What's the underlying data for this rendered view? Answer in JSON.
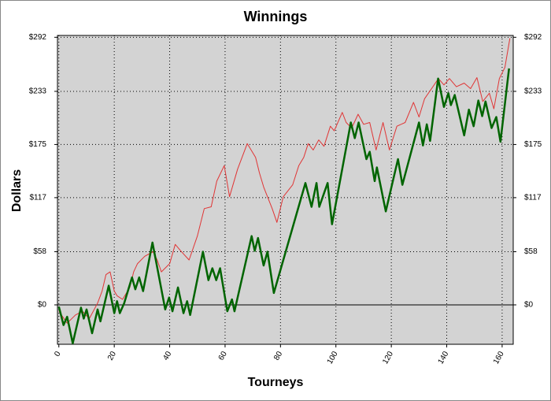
{
  "chart_data": {
    "type": "line",
    "title": "Winnings",
    "x_label": "Tourneys",
    "y_label": "Dollars",
    "xlim": [
      -0.5,
      164
    ],
    "ylim": [
      -43,
      294
    ],
    "xticks": [
      0,
      20,
      40,
      60,
      80,
      100,
      120,
      140,
      160
    ],
    "yticks": [
      {
        "value": 0,
        "label": "$0"
      },
      {
        "value": 58,
        "label": "$58"
      },
      {
        "value": 117,
        "label": "$117"
      },
      {
        "value": 175,
        "label": "$175"
      },
      {
        "value": 233,
        "label": "$233"
      },
      {
        "value": 292,
        "label": "$292"
      }
    ],
    "grid": true,
    "background": "#d3d3d3",
    "series": [
      {
        "color": "#e03535",
        "width": 1,
        "x": [
          0,
          3,
          6,
          8.5,
          11,
          14,
          15.6,
          17,
          18.5,
          20,
          21,
          23,
          25.6,
          27,
          28.4,
          31,
          34,
          35.5,
          37,
          40,
          42,
          44,
          47,
          50,
          52.5,
          55,
          57,
          59.7,
          61.6,
          64.5,
          68,
          71,
          72.4,
          74,
          77,
          78.7,
          81,
          84.4,
          86.6,
          88.4,
          90,
          91.8,
          93.8,
          95.7,
          98,
          99.4,
          102.3,
          103.7,
          105.7,
          108,
          110,
          112.2,
          114.5,
          117,
          119.3,
          122,
          125,
          128,
          130,
          132,
          135,
          137,
          139,
          141,
          143.5,
          146.3,
          148.6,
          150.9,
          153,
          155.4,
          157,
          159,
          161,
          162.8
        ],
        "values": [
          -7,
          -20,
          -11,
          -7,
          -15,
          2,
          15,
          33,
          36,
          15,
          10,
          6,
          19,
          36,
          45,
          53,
          58,
          49,
          36,
          45,
          66,
          59,
          49,
          75,
          105,
          107,
          135,
          152,
          118,
          148,
          176,
          161,
          144,
          128,
          105,
          90,
          118,
          131,
          152,
          161,
          176,
          169,
          180,
          173,
          195,
          190,
          210,
          199,
          193,
          208,
          197,
          199,
          169,
          199,
          169,
          195,
          199,
          221,
          205,
          225,
          238,
          247,
          240,
          247,
          238,
          242,
          236,
          248,
          222,
          231,
          214,
          247,
          259,
          291
        ]
      },
      {
        "color": "#006400",
        "width": 2.5,
        "x": [
          0,
          1.7,
          3,
          5,
          8,
          9,
          10,
          12,
          14,
          15,
          18,
          20,
          21,
          22,
          23.6,
          26.4,
          27.6,
          29,
          30.4,
          33.8,
          38.4,
          39.8,
          41,
          43,
          45,
          46.3,
          47.4,
          52,
          54,
          55.4,
          56.8,
          58.2,
          60.8,
          62.5,
          63.4,
          69.6,
          70.7,
          71.9,
          73.9,
          75.3,
          77.6,
          89,
          91.2,
          93,
          94,
          97,
          98.6,
          105.4,
          106.8,
          108.2,
          111,
          112.2,
          114,
          114.8,
          118,
          122.4,
          124,
          130,
          131.4,
          132.8,
          134,
          136.9,
          139,
          140.6,
          141.5,
          142.9,
          146.3,
          148,
          149.7,
          151.4,
          152.8,
          154,
          156.2,
          157.9,
          159.4,
          162.5
        ],
        "values": [
          -2,
          -22,
          -13,
          -42,
          -3,
          -15,
          -5,
          -31,
          -5,
          -18,
          21,
          -9,
          4,
          -9,
          2,
          30,
          17,
          30,
          15,
          68,
          -5,
          8,
          -7,
          19,
          -9,
          4,
          -11,
          58,
          27,
          40,
          27,
          40,
          -7,
          6,
          -7,
          75,
          59,
          73,
          43,
          58,
          13,
          133,
          107,
          133,
          107,
          133,
          88,
          199,
          182,
          199,
          159,
          167,
          135,
          150,
          102,
          159,
          131,
          199,
          174,
          197,
          179,
          247,
          216,
          231,
          218,
          229,
          185,
          213,
          195,
          223,
          206,
          222,
          193,
          205,
          178,
          258
        ]
      }
    ]
  }
}
